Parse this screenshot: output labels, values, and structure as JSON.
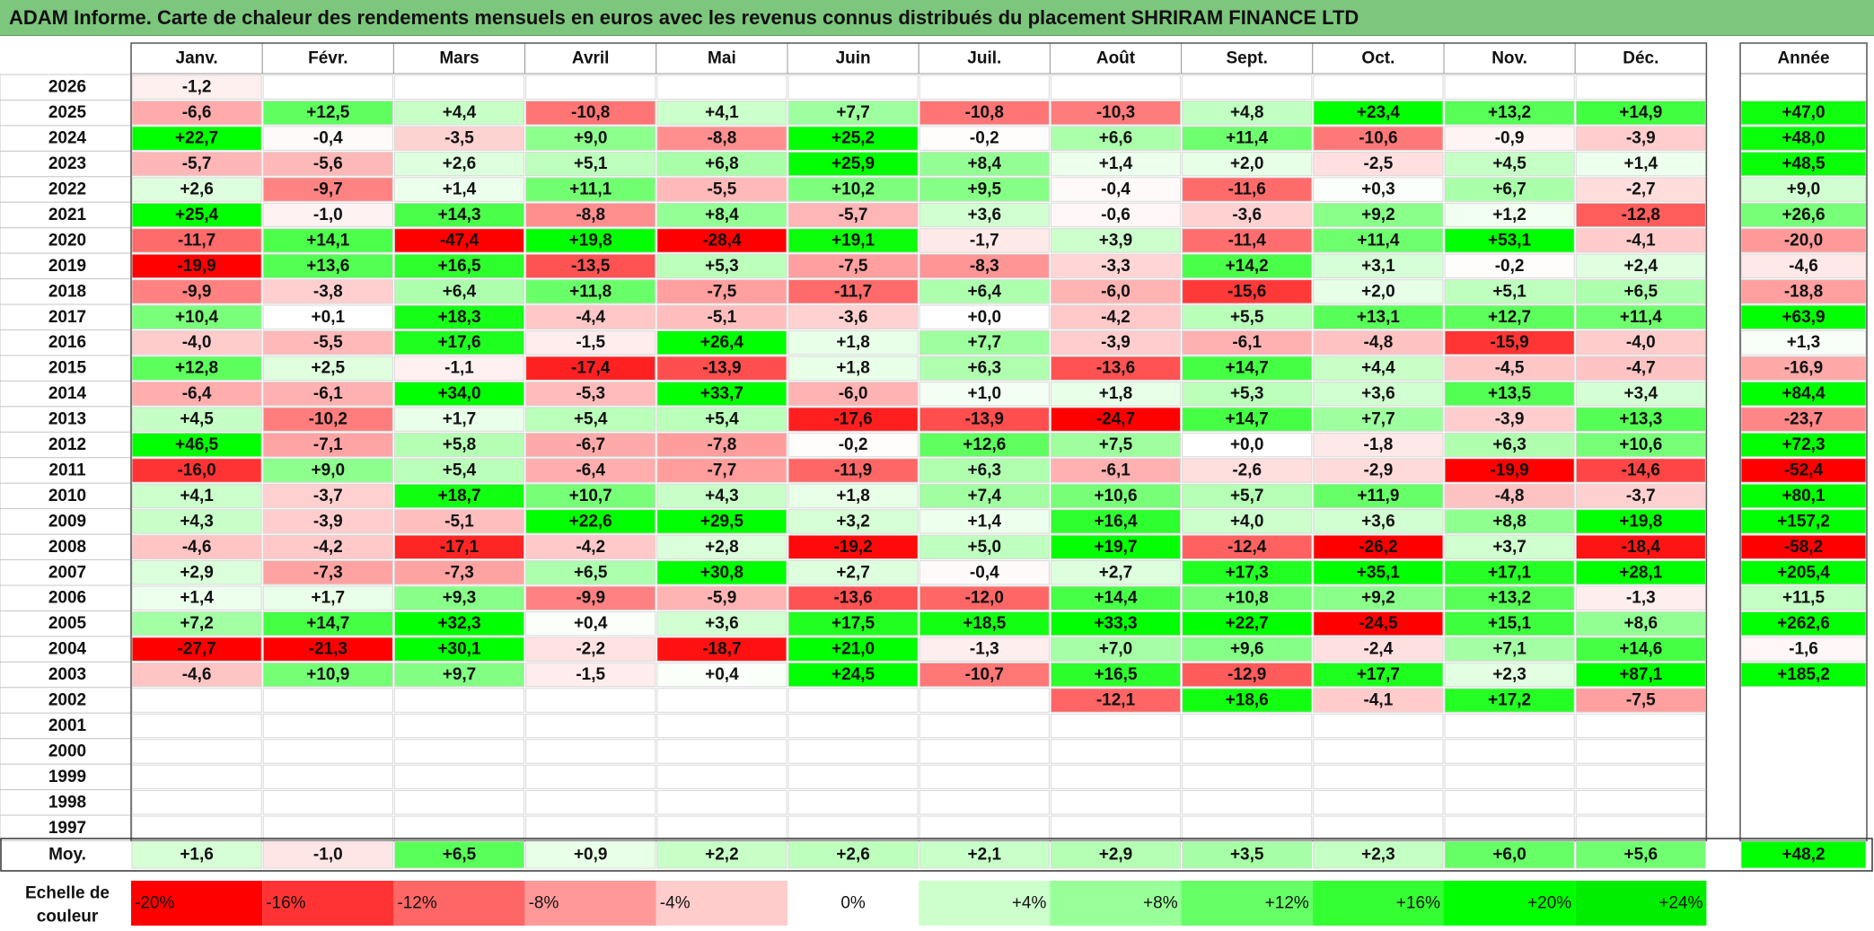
{
  "title": "ADAM Informe. Carte de chaleur des rendements mensuels en euros avec les revenus connus distribués du placement SHRIRAM FINANCE LTD",
  "chart_data": {
    "type": "heatmap",
    "title": "ADAM Informe. Carte de chaleur des rendements mensuels en euros avec les revenus connus distribués du placement SHRIRAM FINANCE LTD",
    "months": [
      "Janv.",
      "Févr.",
      "Mars",
      "Avril",
      "Mai",
      "Juin",
      "Juil.",
      "Août",
      "Sept.",
      "Oct.",
      "Nov.",
      "Déc."
    ],
    "year_header": "Année",
    "rows": [
      {
        "year": "2026",
        "values": [
          "-1,2",
          null,
          null,
          null,
          null,
          null,
          null,
          null,
          null,
          null,
          null,
          null
        ],
        "annual": null
      },
      {
        "year": "2025",
        "values": [
          "-6,6",
          "+12,5",
          "+4,4",
          "-10,8",
          "+4,1",
          "+7,7",
          "-10,8",
          "-10,3",
          "+4,8",
          "+23,4",
          "+13,2",
          "+14,9"
        ],
        "annual": "+47,0"
      },
      {
        "year": "2024",
        "values": [
          "+22,7",
          "-0,4",
          "-3,5",
          "+9,0",
          "-8,8",
          "+25,2",
          "-0,2",
          "+6,6",
          "+11,4",
          "-10,6",
          "-0,9",
          "-3,9"
        ],
        "annual": "+48,0"
      },
      {
        "year": "2023",
        "values": [
          "-5,7",
          "-5,6",
          "+2,6",
          "+5,1",
          "+6,8",
          "+25,9",
          "+8,4",
          "+1,4",
          "+2,0",
          "-2,5",
          "+4,5",
          "+1,4"
        ],
        "annual": "+48,5"
      },
      {
        "year": "2022",
        "values": [
          "+2,6",
          "-9,7",
          "+1,4",
          "+11,1",
          "-5,5",
          "+10,2",
          "+9,5",
          "-0,4",
          "-11,6",
          "+0,3",
          "+6,7",
          "-2,7"
        ],
        "annual": "+9,0"
      },
      {
        "year": "2021",
        "values": [
          "+25,4",
          "-1,0",
          "+14,3",
          "-8,8",
          "+8,4",
          "-5,7",
          "+3,6",
          "-0,6",
          "-3,6",
          "+9,2",
          "+1,2",
          "-12,8"
        ],
        "annual": "+26,6"
      },
      {
        "year": "2020",
        "values": [
          "-11,7",
          "+14,1",
          "-47,4",
          "+19,8",
          "-28,4",
          "+19,1",
          "-1,7",
          "+3,9",
          "-11,4",
          "+11,4",
          "+53,1",
          "-4,1"
        ],
        "annual": "-20,0"
      },
      {
        "year": "2019",
        "values": [
          "-19,9",
          "+13,6",
          "+16,5",
          "-13,5",
          "+5,3",
          "-7,5",
          "-8,3",
          "-3,3",
          "+14,2",
          "+3,1",
          "-0,2",
          "+2,4"
        ],
        "annual": "-4,6"
      },
      {
        "year": "2018",
        "values": [
          "-9,9",
          "-3,8",
          "+6,4",
          "+11,8",
          "-7,5",
          "-11,7",
          "+6,4",
          "-6,0",
          "-15,6",
          "+2,0",
          "+5,1",
          "+6,5"
        ],
        "annual": "-18,8"
      },
      {
        "year": "2017",
        "values": [
          "+10,4",
          "+0,1",
          "+18,3",
          "-4,4",
          "-5,1",
          "-3,6",
          "+0,0",
          "-4,2",
          "+5,5",
          "+13,1",
          "+12,7",
          "+11,4"
        ],
        "annual": "+63,9"
      },
      {
        "year": "2016",
        "values": [
          "-4,0",
          "-5,5",
          "+17,6",
          "-1,5",
          "+26,4",
          "+1,8",
          "+7,7",
          "-3,9",
          "-6,1",
          "-4,8",
          "-15,9",
          "-4,0"
        ],
        "annual": "+1,3"
      },
      {
        "year": "2015",
        "values": [
          "+12,8",
          "+2,5",
          "-1,1",
          "-17,4",
          "-13,9",
          "+1,8",
          "+6,3",
          "-13,6",
          "+14,7",
          "+4,4",
          "-4,5",
          "-4,7"
        ],
        "annual": "-16,9"
      },
      {
        "year": "2014",
        "values": [
          "-6,4",
          "-6,1",
          "+34,0",
          "-5,3",
          "+33,7",
          "-6,0",
          "+1,0",
          "+1,8",
          "+5,3",
          "+3,6",
          "+13,5",
          "+3,4"
        ],
        "annual": "+84,4"
      },
      {
        "year": "2013",
        "values": [
          "+4,5",
          "-10,2",
          "+1,7",
          "+5,4",
          "+5,4",
          "-17,6",
          "-13,9",
          "-24,7",
          "+14,7",
          "+7,7",
          "-3,9",
          "+13,3"
        ],
        "annual": "-23,7"
      },
      {
        "year": "2012",
        "values": [
          "+46,5",
          "-7,1",
          "+5,8",
          "-6,7",
          "-7,8",
          "-0,2",
          "+12,6",
          "+7,5",
          "+0,0",
          "-1,8",
          "+6,3",
          "+10,6"
        ],
        "annual": "+72,3"
      },
      {
        "year": "2011",
        "values": [
          "-16,0",
          "+9,0",
          "+5,4",
          "-6,4",
          "-7,7",
          "-11,9",
          "+6,3",
          "-6,1",
          "-2,6",
          "-2,9",
          "-19,9",
          "-14,6"
        ],
        "annual": "-52,4"
      },
      {
        "year": "2010",
        "values": [
          "+4,1",
          "-3,7",
          "+18,7",
          "+10,7",
          "+4,3",
          "+1,8",
          "+7,4",
          "+10,6",
          "+5,7",
          "+11,9",
          "-4,8",
          "-3,7"
        ],
        "annual": "+80,1"
      },
      {
        "year": "2009",
        "values": [
          "+4,3",
          "-3,9",
          "-5,1",
          "+22,6",
          "+29,5",
          "+3,2",
          "+1,4",
          "+16,4",
          "+4,0",
          "+3,6",
          "+8,8",
          "+19,8"
        ],
        "annual": "+157,2"
      },
      {
        "year": "2008",
        "values": [
          "-4,6",
          "-4,2",
          "-17,1",
          "-4,2",
          "+2,8",
          "-19,2",
          "+5,0",
          "+19,7",
          "-12,4",
          "-26,2",
          "+3,7",
          "-18,4"
        ],
        "annual": "-58,2"
      },
      {
        "year": "2007",
        "values": [
          "+2,9",
          "-7,3",
          "-7,3",
          "+6,5",
          "+30,8",
          "+2,7",
          "-0,4",
          "+2,7",
          "+17,3",
          "+35,1",
          "+17,1",
          "+28,1"
        ],
        "annual": "+205,4"
      },
      {
        "year": "2006",
        "values": [
          "+1,4",
          "+1,7",
          "+9,3",
          "-9,9",
          "-5,9",
          "-13,6",
          "-12,0",
          "+14,4",
          "+10,8",
          "+9,2",
          "+13,2",
          "-1,3"
        ],
        "annual": "+11,5"
      },
      {
        "year": "2005",
        "values": [
          "+7,2",
          "+14,7",
          "+32,3",
          "+0,4",
          "+3,6",
          "+17,5",
          "+18,5",
          "+33,3",
          "+22,7",
          "-24,5",
          "+15,1",
          "+8,6"
        ],
        "annual": "+262,6"
      },
      {
        "year": "2004",
        "values": [
          "-27,7",
          "-21,3",
          "+30,1",
          "-2,2",
          "-18,7",
          "+21,0",
          "-1,3",
          "+7,0",
          "+9,6",
          "-2,4",
          "+7,1",
          "+14,6"
        ],
        "annual": "-1,6"
      },
      {
        "year": "2003",
        "values": [
          "-4,6",
          "+10,9",
          "+9,7",
          "-1,5",
          "+0,4",
          "+24,5",
          "-10,7",
          "+16,5",
          "-12,9",
          "+17,7",
          "+2,3",
          "+87,1"
        ],
        "annual": "+185,2"
      },
      {
        "year": "2002",
        "values": [
          null,
          null,
          null,
          null,
          null,
          null,
          null,
          "-12,1",
          "+18,6",
          "-4,1",
          "+17,2",
          "-7,5"
        ],
        "annual": null
      },
      {
        "year": "2001",
        "values": [
          null,
          null,
          null,
          null,
          null,
          null,
          null,
          null,
          null,
          null,
          null,
          null
        ],
        "annual": null
      },
      {
        "year": "2000",
        "values": [
          null,
          null,
          null,
          null,
          null,
          null,
          null,
          null,
          null,
          null,
          null,
          null
        ],
        "annual": null
      },
      {
        "year": "1999",
        "values": [
          null,
          null,
          null,
          null,
          null,
          null,
          null,
          null,
          null,
          null,
          null,
          null
        ],
        "annual": null
      },
      {
        "year": "1998",
        "values": [
          null,
          null,
          null,
          null,
          null,
          null,
          null,
          null,
          null,
          null,
          null,
          null
        ],
        "annual": null
      },
      {
        "year": "1997",
        "values": [
          null,
          null,
          null,
          null,
          null,
          null,
          null,
          null,
          null,
          null,
          null,
          null
        ],
        "annual": null
      }
    ],
    "average": {
      "label": "Moy.",
      "values": [
        "+1,6",
        "-1,0",
        "+6,5",
        "+0,9",
        "+2,2",
        "+2,6",
        "+2,1",
        "+2,9",
        "+3,5",
        "+2,3",
        "+6,0",
        "+5,6"
      ],
      "annual": "+48,2"
    },
    "scale": {
      "label_line1": "Echelle de",
      "label_line2": "couleur",
      "steps": [
        {
          "label": "-20%",
          "value": -20,
          "color": "#ff0000"
        },
        {
          "label": "-16%",
          "value": -16,
          "color": "#ff3333"
        },
        {
          "label": "-12%",
          "value": -12,
          "color": "#ff6666"
        },
        {
          "label": "-8%",
          "value": -8,
          "color": "#ff9999"
        },
        {
          "label": "-4%",
          "value": -4,
          "color": "#ffcccc"
        },
        {
          "label": "0%",
          "value": 0,
          "color": "#ffffff"
        },
        {
          "label": "+4%",
          "value": 4,
          "color": "#ccffcc"
        },
        {
          "label": "+8%",
          "value": 8,
          "color": "#99ff99"
        },
        {
          "label": "+12%",
          "value": 12,
          "color": "#66ff66"
        },
        {
          "label": "+16%",
          "value": 16,
          "color": "#33ff33"
        },
        {
          "label": "+20%",
          "value": 20,
          "color": "#00ff00"
        },
        {
          "label": "+24%",
          "value": 24,
          "color": "#00ee00"
        }
      ]
    }
  }
}
